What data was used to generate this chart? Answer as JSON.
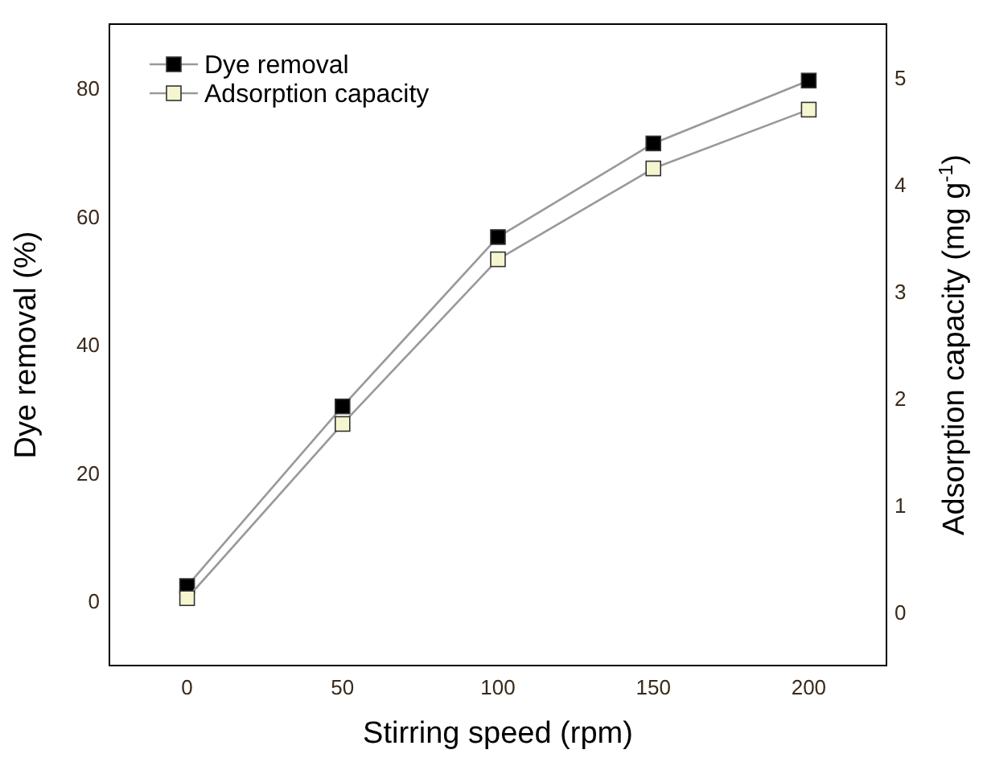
{
  "chart_data": {
    "type": "line",
    "xlabel": "Stirring speed (rpm)",
    "ylabel": "Dye removal (%)",
    "y2label": "Adsorption capacity (mg g$^{-1}$)",
    "x": [
      0,
      50,
      100,
      150,
      200
    ],
    "series": [
      {
        "name": "Dye removal",
        "color": "#000000",
        "values": [
          2.4,
          30.4,
          56.8,
          71.4,
          81.2
        ]
      },
      {
        "name": "Adsorption capacity",
        "color": "#f5f5d0",
        "axis": "y2",
        "values": [
          0.13,
          1.76,
          3.3,
          4.15,
          4.7
        ]
      }
    ],
    "xlim": [
      -25,
      225
    ],
    "xticks": [
      0,
      50,
      100,
      150,
      200
    ],
    "ylim": [
      -10,
      90
    ],
    "yticks": [
      0,
      20,
      40,
      60,
      80
    ],
    "y2lim": [
      -0.5,
      5.5
    ],
    "y2ticks": [
      0,
      1,
      2,
      3,
      4,
      5
    ],
    "marker": "square",
    "line_style": "solid",
    "legend": "top left",
    "grid": false
  }
}
